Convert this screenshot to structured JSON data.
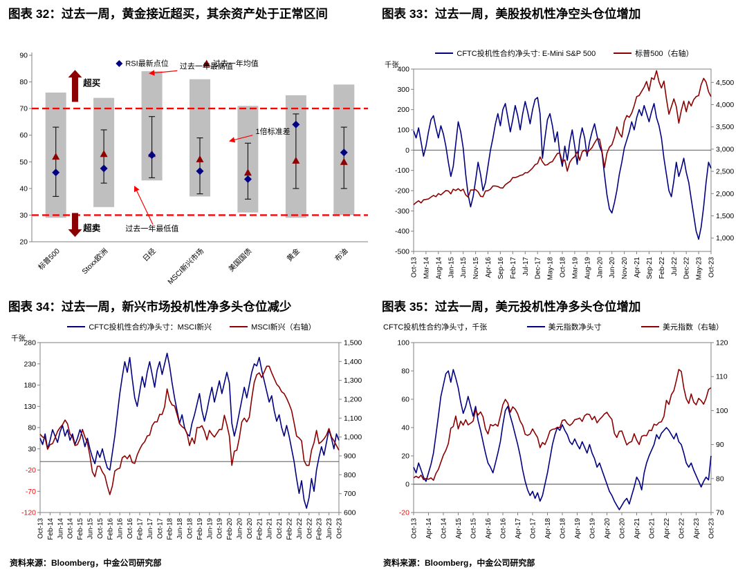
{
  "sources": {
    "left": "资料来源：Bloomberg，中金公司研究部",
    "right": "资料来源：Bloomberg，中金公司研究部"
  },
  "colors": {
    "navy": "#000080",
    "dark_red": "#8B0000",
    "bright_red": "#FF0000",
    "bar_gray": "#BFBFBF",
    "axis_gray": "#7f7f7f"
  },
  "chart_data": [
    {
      "id": "fig32",
      "type": "range",
      "title": "图表 32：过去一周，黄金接近超买，其余资产处于正常区间",
      "ylim": [
        20,
        90
      ],
      "yticks": [
        90,
        80,
        70,
        60,
        50,
        40,
        30,
        20
      ],
      "overbought": 70,
      "oversold": 30,
      "legend": [
        {
          "label": "RSI最新点位",
          "marker": "diamond",
          "color": "#000080"
        },
        {
          "label": "过去一年均值",
          "marker": "triangle",
          "color": "#8B0000"
        }
      ],
      "annotations": {
        "overbought": "超买",
        "oversold": "超卖",
        "max": "过去一年最高值",
        "std": "1倍标准差",
        "min": "过去一年最低值"
      },
      "categories": [
        "标普500",
        "Stoxx欧洲",
        "日经",
        "MSCI新兴市场",
        "美国国债",
        "黄金",
        "布油"
      ],
      "range_high": [
        76,
        74,
        84,
        81,
        71,
        75,
        79
      ],
      "range_low": [
        29,
        33,
        43,
        37,
        31,
        29,
        30
      ],
      "std_high": [
        63,
        62,
        67,
        59,
        57,
        68,
        63
      ],
      "std_low": [
        37,
        42,
        44,
        38,
        36,
        40,
        40
      ],
      "mean": [
        52,
        53,
        53,
        51,
        46,
        50.5,
        50
      ],
      "latest": [
        46,
        47.5,
        52.5,
        46.5,
        43.5,
        64,
        53.5
      ]
    },
    {
      "id": "fig33",
      "type": "line",
      "title": "图表 33：过去一周，美股投机性净空头仓位增加",
      "unit_label": "千张",
      "xtick_every": 5,
      "xtick_labels": [
        "Oct-13",
        "Mar-14",
        "Aug-14",
        "Jan-15",
        "Jun-15",
        "Nov-15",
        "Apr-16",
        "Sep-16",
        "Feb-17",
        "Jul-17",
        "Dec-17",
        "May-18",
        "Oct-18",
        "Mar-19",
        "Aug-19",
        "Jan-20",
        "Jun-20",
        "Nov-20",
        "Apr-21",
        "Sep-21",
        "Feb-22",
        "Jul-22",
        "Dec-22",
        "May-23",
        "Oct-23"
      ],
      "left_axis": {
        "lim": [
          -500,
          400
        ],
        "ticks": [
          400,
          300,
          200,
          100,
          0,
          -100,
          -200,
          -300,
          -400,
          -500
        ],
        "tick_labels": [
          "400",
          "300",
          "200",
          "100",
          "0",
          "-100",
          "-200",
          "-300",
          "-400",
          "-500"
        ],
        "negative_red": false
      },
      "right_axis": {
        "lim": [
          700,
          4800
        ],
        "ticks": [
          4500,
          4000,
          3500,
          3000,
          2500,
          2000,
          1500,
          1000
        ],
        "tick_labels": [
          "4,500",
          "4,000",
          "3,500",
          "3,000",
          "2,500",
          "2,000",
          "1,500",
          "1,000"
        ]
      },
      "series": [
        {
          "name": "CFTC投机性合约净头寸: E-Mini S&P 500",
          "axis": "left",
          "color": "#000080",
          "values": [
            95,
            60,
            110,
            40,
            -30,
            20,
            90,
            150,
            170,
            110,
            60,
            120,
            80,
            20,
            -60,
            -130,
            -80,
            30,
            140,
            90,
            10,
            -120,
            -220,
            -280,
            -230,
            -150,
            -60,
            -120,
            -200,
            -160,
            -80,
            0,
            60,
            130,
            180,
            120,
            200,
            230,
            160,
            90,
            150,
            220,
            170,
            100,
            180,
            240,
            190,
            130,
            200,
            250,
            260,
            180,
            -40,
            60,
            150,
            180,
            120,
            40,
            90,
            -20,
            -80,
            20,
            -50,
            40,
            100,
            20,
            -70,
            50,
            110,
            60,
            -30,
            40,
            90,
            130,
            70,
            20,
            -10,
            -120,
            -220,
            -290,
            -310,
            -260,
            -200,
            -120,
            -60,
            10,
            50,
            90,
            140,
            100,
            160,
            200,
            170,
            220,
            180,
            140,
            190,
            230,
            160,
            120,
            60,
            -40,
            -120,
            -200,
            -230,
            -150,
            -60,
            -130,
            -90,
            -40,
            -110,
            -160,
            -240,
            -320,
            -400,
            -440,
            -380,
            -280,
            -160,
            -60,
            -90
          ]
        },
        {
          "name": "标普500（右轴）",
          "axis": "right",
          "color": "#8B0000",
          "values": [
            1750,
            1800,
            1840,
            1790,
            1860,
            1870,
            1880,
            1920,
            1960,
            1930,
            2000,
            1970,
            2020,
            2070,
            2060,
            1995,
            2100,
            2070,
            2110,
            2060,
            2100,
            1970,
            1920,
            2080,
            2080,
            2090,
            2040,
            1940,
            1930,
            2060,
            2065,
            2100,
            2170,
            2170,
            2160,
            2130,
            2125,
            2200,
            2240,
            2280,
            2360,
            2360,
            2380,
            2410,
            2420,
            2470,
            2470,
            2520,
            2575,
            2650,
            2675,
            2825,
            2715,
            2640,
            2650,
            2700,
            2720,
            2815,
            2900,
            2915,
            2710,
            2760,
            2505,
            2705,
            2785,
            2835,
            2945,
            2750,
            2940,
            2980,
            2925,
            2975,
            3035,
            3140,
            3230,
            3225,
            2955,
            2585,
            2910,
            3045,
            3100,
            3270,
            3500,
            3360,
            3270,
            3620,
            3755,
            3715,
            3810,
            3975,
            4180,
            4205,
            4300,
            4395,
            4520,
            4310,
            4605,
            4565,
            4765,
            4515,
            4375,
            4530,
            4130,
            3785,
            3955,
            4130,
            3955,
            3585,
            3870,
            4080,
            3840,
            4075,
            3970,
            4110,
            4180,
            4205,
            4450,
            4590,
            4510,
            4290,
            4180
          ]
        }
      ]
    },
    {
      "id": "fig34",
      "type": "line",
      "title": "图表 34：过去一周，新兴市场投机性净多头仓位减少",
      "unit_label": "千张",
      "xtick_every": 4,
      "xtick_labels": [
        "Oct-13",
        "Feb-14",
        "Jun-14",
        "Oct-14",
        "Feb-15",
        "Jun-15",
        "Oct-15",
        "Feb-16",
        "Jun-16",
        "Oct-16",
        "Feb-17",
        "Jun-17",
        "Oct-17",
        "Feb-18",
        "Jun-18",
        "Oct-18",
        "Feb-19",
        "Jun-19",
        "Oct-19",
        "Feb-20",
        "Jun-20",
        "Oct-20",
        "Feb-21",
        "Jun-21",
        "Oct-21",
        "Feb-22",
        "Jun-22",
        "Oct-22",
        "Feb-23",
        "Jun-23",
        "Oct-23"
      ],
      "left_axis": {
        "lim": [
          -120,
          280
        ],
        "ticks": [
          280,
          230,
          180,
          130,
          80,
          30,
          -20,
          -70,
          -120
        ],
        "tick_labels": [
          "280",
          "230",
          "180",
          "130",
          "80",
          "30",
          "-20",
          "-70",
          "-120"
        ],
        "negative_red": true
      },
      "right_axis": {
        "lim": [
          600,
          1500
        ],
        "ticks": [
          1500,
          1400,
          1300,
          1200,
          1100,
          1000,
          900,
          800,
          700,
          600
        ],
        "tick_labels": [
          "1,500",
          "1,400",
          "1,300",
          "1,200",
          "1,100",
          "1,000",
          "900",
          "800",
          "700",
          "600"
        ]
      },
      "series": [
        {
          "name": "CFTC投机性合约净头寸：MSCI新兴",
          "axis": "left",
          "color": "#000080",
          "values": [
            55,
            40,
            65,
            30,
            50,
            75,
            60,
            45,
            70,
            85,
            60,
            75,
            50,
            65,
            40,
            55,
            75,
            60,
            35,
            55,
            30,
            10,
            -5,
            25,
            10,
            30,
            5,
            -15,
            -20,
            20,
            60,
            110,
            160,
            200,
            235,
            210,
            245,
            195,
            150,
            130,
            165,
            200,
            175,
            210,
            235,
            205,
            175,
            215,
            235,
            205,
            230,
            255,
            225,
            185,
            150,
            120,
            90,
            110,
            80,
            65,
            60,
            90,
            110,
            135,
            160,
            120,
            95,
            120,
            150,
            175,
            140,
            165,
            190,
            160,
            185,
            210,
            185,
            90,
            60,
            85,
            115,
            145,
            175,
            150,
            180,
            210,
            230,
            225,
            245,
            215,
            190,
            165,
            140,
            155,
            120,
            95,
            110,
            80,
            60,
            85,
            60,
            30,
            0,
            -40,
            -75,
            -45,
            -90,
            -110,
            -85,
            -40,
            -70,
            -20,
            10,
            35,
            15,
            45,
            75,
            55,
            30,
            65,
            50
          ]
        },
        {
          "name": "MSCI新兴（右轴）",
          "axis": "right",
          "color": "#8B0000",
          "values": [
            1015,
            1000,
            995,
            935,
            960,
            965,
            995,
            1030,
            1050,
            1065,
            1090,
            1070,
            1015,
            1000,
            955,
            960,
            990,
            1040,
            1000,
            970,
            900,
            815,
            790,
            845,
            845,
            815,
            795,
            740,
            695,
            740,
            820,
            830,
            835,
            890,
            900,
            885,
            905,
            865,
            860,
            905,
            935,
            960,
            975,
            1005,
            1010,
            1060,
            1080,
            1080,
            1120,
            1120,
            1160,
            1255,
            1195,
            1170,
            1165,
            1120,
            1070,
            1055,
            1045,
            1020,
            955,
            995,
            965,
            1050,
            1050,
            1060,
            1030,
            985,
            1035,
            1015,
            1000,
            1020,
            1040,
            1040,
            1115,
            1065,
            1005,
            850,
            925,
            930,
            995,
            1080,
            1100,
            1080,
            1105,
            1205,
            1290,
            1330,
            1340,
            1315,
            1345,
            1375,
            1375,
            1340,
            1310,
            1280,
            1265,
            1240,
            1230,
            1205,
            1175,
            1140,
            1075,
            1005,
            995,
            980,
            875,
            850,
            850,
            930,
            970,
            1035,
            965,
            975,
            990,
            1010,
            1045,
            1000,
            980,
            955,
            930
          ]
        }
      ]
    },
    {
      "id": "fig35",
      "type": "line",
      "title": "图表 35：过去一周，美元投机性净多头仓位增加",
      "header_text": "CFTC投机性合约净头寸，千张",
      "xtick_every": 6,
      "xtick_labels": [
        "Oct-13",
        "Apr-14",
        "Oct-14",
        "Apr-15",
        "Oct-15",
        "Apr-16",
        "Oct-16",
        "Apr-17",
        "Oct-17",
        "Apr-18",
        "Oct-18",
        "Apr-19",
        "Oct-19",
        "Apr-20",
        "Oct-20",
        "Apr-21",
        "Oct-21",
        "Apr-22",
        "Oct-22",
        "Apr-23",
        "Oct-23"
      ],
      "left_axis": {
        "lim": [
          -20,
          100
        ],
        "ticks": [
          100,
          80,
          60,
          40,
          20,
          0,
          -20
        ],
        "tick_labels": [
          "100",
          "80",
          "60",
          "40",
          "20",
          "0",
          "-20"
        ],
        "negative_red": true
      },
      "right_axis": {
        "lim": [
          70,
          120
        ],
        "ticks": [
          120,
          110,
          100,
          90,
          80,
          70
        ],
        "tick_labels": [
          "120",
          "110",
          "100",
          "90",
          "80",
          "70"
        ]
      },
      "series": [
        {
          "name": "美元指数净头寸",
          "axis": "left",
          "color": "#000080",
          "values": [
            12,
            8,
            15,
            10,
            5,
            2,
            8,
            14,
            22,
            35,
            48,
            62,
            70,
            78,
            80,
            72,
            81,
            75,
            68,
            58,
            50,
            55,
            62,
            55,
            48,
            55,
            45,
            38,
            30,
            22,
            15,
            12,
            8,
            15,
            22,
            30,
            42,
            52,
            55,
            48,
            42,
            35,
            28,
            20,
            10,
            2,
            -4,
            -8,
            -5,
            -10,
            -6,
            -12,
            -8,
            0,
            8,
            18,
            28,
            35,
            40,
            38,
            42,
            38,
            35,
            30,
            28,
            32,
            28,
            25,
            30,
            26,
            22,
            28,
            22,
            18,
            12,
            15,
            10,
            5,
            0,
            -5,
            -8,
            -12,
            -15,
            -18,
            -15,
            -12,
            -10,
            -14,
            -8,
            -2,
            5,
            2,
            -4,
            8,
            15,
            20,
            24,
            28,
            35,
            32,
            36,
            38,
            40,
            38,
            35,
            32,
            36,
            30,
            28,
            22,
            15,
            12,
            15,
            10,
            6,
            2,
            -2,
            2,
            5,
            3,
            20
          ]
        },
        {
          "name": "美元指数（右轴）",
          "axis": "right",
          "color": "#8B0000",
          "values": [
            80.2,
            80.7,
            80.2,
            81.0,
            79.7,
            80.0,
            79.8,
            80.2,
            79.5,
            81.5,
            82.7,
            84.8,
            86.9,
            88.3,
            90.3,
            94.8,
            95.3,
            98.4,
            94.6,
            96.9,
            95.7,
            97.3,
            95.8,
            96.3,
            96.9,
            100.2,
            98.7,
            99.6,
            98.2,
            94.6,
            93.1,
            95.9,
            95.5,
            96.0,
            95.4,
            98.4,
            101.7,
            103.3,
            102.2,
            99.5,
            101.1,
            100.4,
            99.0,
            96.9,
            95.6,
            93.0,
            92.7,
            93.1,
            94.6,
            93.3,
            92.1,
            89.1,
            90.6,
            90.0,
            91.8,
            94.0,
            94.5,
            94.6,
            95.1,
            95.0,
            97.1,
            97.3,
            96.2,
            95.6,
            96.2,
            97.3,
            97.5,
            97.8,
            96.8,
            98.5,
            99.0,
            98.8,
            97.3,
            98.3,
            96.4,
            97.4,
            98.1,
            99.0,
            99.5,
            98.3,
            97.4,
            93.3,
            92.1,
            93.9,
            94.0,
            91.9,
            89.9,
            90.6,
            90.9,
            93.2,
            91.3,
            90.0,
            92.4,
            92.7,
            92.6,
            94.2,
            94.1,
            96.0,
            95.7,
            96.5,
            96.7,
            98.3,
            103.0,
            101.8,
            104.7,
            105.9,
            108.8,
            112.1,
            111.5,
            106.7,
            103.5,
            102.1,
            104.9,
            102.5,
            101.7,
            103.6,
            102.9,
            101.9,
            103.6,
            106.2,
            106.7
          ]
        }
      ]
    }
  ]
}
